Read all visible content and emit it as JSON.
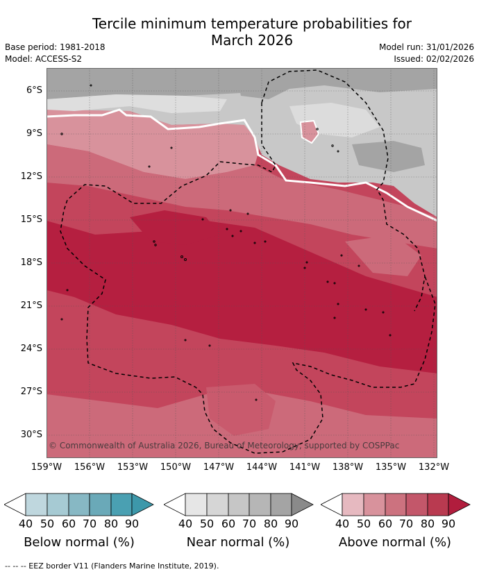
{
  "title_line1": "Tercile minimum temperature probabilities for",
  "title_line2": "March 2026",
  "base_period": "Base period: 1981-2018",
  "model": "Model: ACCESS-S2",
  "model_run": "Model run: 31/01/2026",
  "issued": "Issued: 02/02/2026",
  "copyright": "© Commonwealth of Australia 2026, Bureau of Meteorology, supported by COSPPac",
  "lat_labels": [
    "6°S",
    "9°S",
    "12°S",
    "15°S",
    "18°S",
    "21°S",
    "24°S",
    "27°S",
    "30°S"
  ],
  "lon_labels": [
    "159°W",
    "156°W",
    "153°W",
    "150°W",
    "147°W",
    "144°W",
    "141°W",
    "138°W",
    "135°W",
    "132°W"
  ],
  "colorbars": [
    {
      "label": "Below normal (%)",
      "ticks": [
        "40",
        "50",
        "60",
        "70",
        "80",
        "90"
      ],
      "colors": [
        "#bfd7de",
        "#a6cad3",
        "#87b8c4",
        "#6aa9b8",
        "#4aa0b2",
        "#3d98aa"
      ]
    },
    {
      "label": "Near normal (%)",
      "ticks": [
        "40",
        "50",
        "60",
        "70",
        "80",
        "90"
      ],
      "colors": [
        "#e6e6e6",
        "#d6d6d6",
        "#c6c6c6",
        "#b6b6b6",
        "#a4a4a4",
        "#8a8a8a"
      ]
    },
    {
      "label": "Above normal (%)",
      "ticks": [
        "40",
        "50",
        "60",
        "70",
        "80",
        "90"
      ],
      "colors": [
        "#e6b9c0",
        "#d8929c",
        "#cc727f",
        "#c3576a",
        "#b93a50",
        "#b11d3d"
      ]
    }
  ],
  "footnote": "-- -- -- EEZ border V11 (Flanders Marine Institute, 2019)."
}
